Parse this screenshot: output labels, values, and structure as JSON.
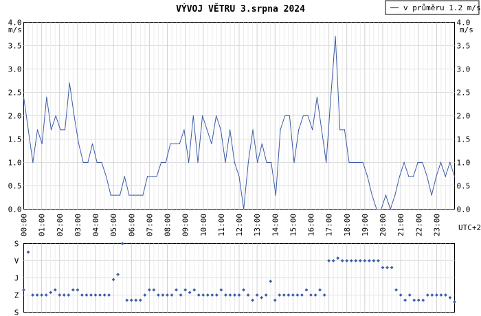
{
  "title": "VÝVOJ VĚTRU  3.srpna 2024",
  "legend": {
    "label": "v průměru 1.2 m/s",
    "color": "#3a5aa8"
  },
  "unit_label": "m/s",
  "timezone_label": "UTC+2",
  "chart_data": [
    {
      "type": "line",
      "title": "VÝVOJ VĚTRU  3.srpna 2024",
      "ylabel": "m/s",
      "ylim": [
        0,
        4
      ],
      "yticks": [
        "0.0",
        "0.5",
        "1.0",
        "1.5",
        "2.0",
        "2.5",
        "3.0",
        "3.5",
        "4.0"
      ],
      "xlim": [
        0,
        24
      ],
      "xticks": [
        "00:00",
        "01:00",
        "02:00",
        "03:00",
        "04:00",
        "05:00",
        "06:00",
        "07:00",
        "08:00",
        "09:00",
        "10:00",
        "11:00",
        "12:00",
        "13:00",
        "14:00",
        "15:00",
        "16:00",
        "17:00",
        "18:00",
        "19:00",
        "20:00",
        "21:00",
        "22:00",
        "23:00"
      ],
      "xlabel_suffix": "UTC+2",
      "grid": true,
      "legend_position": "top-right",
      "series": [
        {
          "name": "v průměru 1.2 m/s",
          "color": "#3a5aa8",
          "values": [
            2.4,
            1.7,
            1.0,
            1.7,
            1.4,
            2.4,
            1.7,
            2.0,
            1.7,
            1.7,
            2.7,
            2.0,
            1.4,
            1.0,
            1.0,
            1.4,
            1.0,
            1.0,
            0.7,
            0.3,
            0.3,
            0.3,
            0.7,
            0.3,
            0.3,
            0.3,
            0.3,
            0.7,
            0.7,
            0.7,
            1.0,
            1.0,
            1.4,
            1.4,
            1.4,
            1.7,
            1.0,
            2.0,
            1.0,
            2.0,
            1.7,
            1.4,
            2.0,
            1.7,
            1.0,
            1.7,
            1.0,
            0.7,
            0.0,
            1.0,
            1.7,
            1.0,
            1.4,
            1.0,
            1.0,
            0.3,
            1.7,
            2.0,
            2.0,
            1.0,
            1.7,
            2.0,
            2.0,
            1.7,
            2.4,
            1.7,
            1.0,
            2.4,
            3.7,
            1.7,
            1.7,
            1.0,
            1.0,
            1.0,
            1.0,
            0.7,
            0.3,
            0.0,
            0.0,
            0.3,
            0.0,
            0.3,
            0.7,
            1.0,
            0.7,
            0.7,
            1.0,
            1.0,
            0.7,
            0.3,
            0.7,
            1.0,
            0.7,
            1.0,
            0.7
          ]
        }
      ]
    },
    {
      "type": "scatter",
      "yticks": [
        "S",
        "V",
        "J",
        "Z",
        "S"
      ],
      "ylim": [
        0,
        4
      ],
      "xlim": [
        0,
        24
      ],
      "color": "#3a5aa8",
      "values": [
        1.3,
        3.5,
        1,
        1,
        1,
        1,
        1.15,
        1.3,
        1,
        1,
        1,
        1.3,
        1.3,
        1,
        1,
        1,
        1,
        1,
        1,
        1,
        1.9,
        2.2,
        4,
        0.7,
        0.7,
        0.7,
        0.7,
        1,
        1.3,
        1.3,
        1,
        1,
        1,
        1,
        1.3,
        1,
        1.3,
        1.15,
        1.3,
        1,
        1,
        1,
        1,
        1,
        1.3,
        1,
        1,
        1,
        1,
        1.3,
        1,
        0.7,
        1,
        0.85,
        1,
        1.8,
        0.7,
        1,
        1,
        1,
        1,
        1,
        1,
        1.3,
        1,
        1,
        1.3,
        1,
        3,
        3,
        3.15,
        3,
        3,
        3,
        3,
        3,
        3,
        3,
        3,
        3,
        2.6,
        2.6,
        2.6,
        1.3,
        1,
        0.7,
        1,
        0.7,
        0.7,
        0.7,
        1,
        1,
        1,
        1,
        1,
        0.85,
        0.6
      ]
    }
  ]
}
